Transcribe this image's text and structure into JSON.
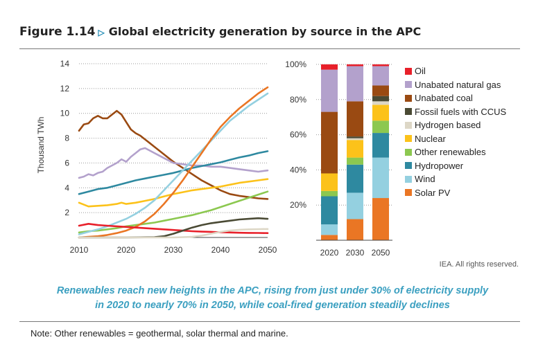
{
  "header": {
    "figure_label": "Figure 1.14",
    "title": "Global electricity generation by source in the APC"
  },
  "credit": "IEA. All rights reserved.",
  "caption_line1": "Renewables reach new heights in the APC, rising from just under 30% of electricity supply",
  "caption_line2": "in 2020 to nearly 70% in 2050, while coal-fired generation steadily declines",
  "note": "Note: Other renewables = geothermal, solar thermal and marine.",
  "colors": {
    "oil": "#e8202a",
    "unabated_gas": "#b3a1cc",
    "unabated_coal": "#9a4a12",
    "ccus": "#4a4a34",
    "hydrogen": "#ddd7c6",
    "nuclear": "#fcc21a",
    "other_renewables": "#8cc850",
    "hydropower": "#2e89a0",
    "wind": "#94d0e0",
    "solar_pv": "#ea7624"
  },
  "chart_data": [
    {
      "type": "line",
      "ylabel": "Thousand TWh",
      "xlabel": "",
      "xlim": [
        2010,
        2050
      ],
      "ylim": [
        0,
        14
      ],
      "x_ticks": [
        2010,
        2020,
        2030,
        2040,
        2050
      ],
      "y_ticks": [
        2,
        4,
        6,
        8,
        10,
        12,
        14
      ],
      "grid": "horizontal dotted",
      "series": [
        {
          "key": "coal",
          "color": "#9a4a12",
          "x": [
            2010,
            2011,
            2012,
            2013,
            2014,
            2015,
            2016,
            2017,
            2018,
            2019,
            2020,
            2021,
            2022,
            2023,
            2024,
            2025,
            2026,
            2027,
            2028,
            2029,
            2030,
            2032,
            2034,
            2036,
            2038,
            2040,
            2042,
            2044,
            2046,
            2048,
            2050
          ],
          "y": [
            8.6,
            9.1,
            9.2,
            9.6,
            9.8,
            9.6,
            9.6,
            9.9,
            10.2,
            9.9,
            9.3,
            8.7,
            8.4,
            8.2,
            7.9,
            7.6,
            7.3,
            7.0,
            6.7,
            6.4,
            6.1,
            5.6,
            5.1,
            4.6,
            4.2,
            3.8,
            3.5,
            3.35,
            3.25,
            3.15,
            3.1
          ]
        },
        {
          "key": "gas",
          "color": "#b3a1cc",
          "x": [
            2010,
            2011,
            2012,
            2013,
            2014,
            2015,
            2016,
            2017,
            2018,
            2019,
            2020,
            2021,
            2022,
            2023,
            2024,
            2025,
            2026,
            2027,
            2028,
            2029,
            2030,
            2032,
            2034,
            2036,
            2038,
            2040,
            2042,
            2044,
            2046,
            2048,
            2050
          ],
          "y": [
            4.8,
            4.9,
            5.1,
            5.0,
            5.2,
            5.3,
            5.6,
            5.8,
            6.0,
            6.3,
            6.1,
            6.5,
            6.8,
            7.1,
            7.2,
            7.0,
            6.8,
            6.6,
            6.4,
            6.2,
            6.0,
            5.9,
            5.8,
            5.8,
            5.7,
            5.7,
            5.6,
            5.5,
            5.4,
            5.3,
            5.4
          ]
        },
        {
          "key": "hydro",
          "color": "#2e89a0",
          "x": [
            2010,
            2012,
            2014,
            2016,
            2018,
            2020,
            2022,
            2024,
            2026,
            2028,
            2030,
            2032,
            2034,
            2036,
            2038,
            2040,
            2042,
            2044,
            2046,
            2048,
            2050
          ],
          "y": [
            3.5,
            3.7,
            3.9,
            4.0,
            4.2,
            4.4,
            4.6,
            4.75,
            4.9,
            5.05,
            5.2,
            5.4,
            5.6,
            5.75,
            5.9,
            6.05,
            6.25,
            6.45,
            6.6,
            6.8,
            6.95
          ]
        },
        {
          "key": "nuclear",
          "color": "#fcc21a",
          "x": [
            2010,
            2012,
            2014,
            2016,
            2018,
            2019,
            2020,
            2022,
            2024,
            2026,
            2028,
            2030,
            2032,
            2034,
            2036,
            2038,
            2040,
            2042,
            2044,
            2046,
            2048,
            2050
          ],
          "y": [
            2.8,
            2.5,
            2.55,
            2.6,
            2.7,
            2.8,
            2.7,
            2.8,
            2.95,
            3.1,
            3.3,
            3.5,
            3.65,
            3.8,
            3.9,
            4.0,
            4.1,
            4.25,
            4.4,
            4.5,
            4.6,
            4.7
          ]
        },
        {
          "key": "other_renewables",
          "color": "#8cc850",
          "x": [
            2010,
            2012,
            2014,
            2016,
            2018,
            2020,
            2022,
            2024,
            2026,
            2028,
            2030,
            2032,
            2034,
            2036,
            2038,
            2040,
            2042,
            2044,
            2046,
            2048,
            2050
          ],
          "y": [
            0.4,
            0.5,
            0.55,
            0.65,
            0.75,
            0.9,
            1.0,
            1.1,
            1.2,
            1.35,
            1.5,
            1.65,
            1.8,
            2.0,
            2.2,
            2.45,
            2.7,
            2.95,
            3.2,
            3.45,
            3.7
          ]
        },
        {
          "key": "wind",
          "color": "#94d0e0",
          "x": [
            2010,
            2012,
            2014,
            2016,
            2018,
            2020,
            2022,
            2024,
            2026,
            2028,
            2030,
            2032,
            2034,
            2036,
            2038,
            2040,
            2042,
            2044,
            2046,
            2048,
            2050
          ],
          "y": [
            0.25,
            0.45,
            0.65,
            0.9,
            1.2,
            1.5,
            1.9,
            2.4,
            3.0,
            3.8,
            4.6,
            5.4,
            6.2,
            7.0,
            7.8,
            8.6,
            9.4,
            10.0,
            10.6,
            11.1,
            11.6
          ]
        },
        {
          "key": "solar",
          "color": "#ea7624",
          "x": [
            2010,
            2012,
            2014,
            2016,
            2018,
            2020,
            2022,
            2024,
            2026,
            2028,
            2030,
            2032,
            2034,
            2036,
            2038,
            2040,
            2042,
            2044,
            2046,
            2048,
            2050
          ],
          "y": [
            0.0,
            0.05,
            0.1,
            0.2,
            0.35,
            0.55,
            0.85,
            1.3,
            1.9,
            2.7,
            3.6,
            4.6,
            5.7,
            6.8,
            7.9,
            8.9,
            9.7,
            10.4,
            11.0,
            11.6,
            12.1
          ]
        },
        {
          "key": "oil",
          "color": "#e8202a",
          "x": [
            2010,
            2012,
            2014,
            2016,
            2018,
            2020,
            2022,
            2024,
            2026,
            2028,
            2030,
            2032,
            2034,
            2036,
            2038,
            2040,
            2042,
            2044,
            2046,
            2048,
            2050
          ],
          "y": [
            0.95,
            1.1,
            1.0,
            0.95,
            0.9,
            0.85,
            0.8,
            0.75,
            0.7,
            0.65,
            0.6,
            0.55,
            0.5,
            0.47,
            0.45,
            0.42,
            0.4,
            0.38,
            0.37,
            0.36,
            0.35
          ]
        },
        {
          "key": "ccus",
          "color": "#4a4a34",
          "x": [
            2010,
            2020,
            2026,
            2028,
            2030,
            2032,
            2034,
            2036,
            2038,
            2040,
            2042,
            2044,
            2046,
            2048,
            2050
          ],
          "y": [
            0.0,
            0.0,
            0.02,
            0.1,
            0.3,
            0.55,
            0.8,
            1.0,
            1.15,
            1.25,
            1.35,
            1.45,
            1.5,
            1.55,
            1.5
          ]
        },
        {
          "key": "hydrogen",
          "color": "#ddd7c6",
          "x": [
            2010,
            2030,
            2034,
            2036,
            2038,
            2040,
            2042,
            2044,
            2046,
            2048,
            2050
          ],
          "y": [
            0.0,
            0.0,
            0.05,
            0.15,
            0.3,
            0.45,
            0.55,
            0.62,
            0.65,
            0.67,
            0.68
          ]
        }
      ]
    },
    {
      "type": "bar",
      "stacked": true,
      "categories": [
        "2020",
        "2030",
        "2050"
      ],
      "ylim": [
        0,
        100
      ],
      "y_ticks": [
        "20%",
        "40%",
        "60%",
        "80%",
        "100%"
      ],
      "legend_position": "right",
      "series": [
        {
          "name": "Solar PV",
          "color": "#ea7624",
          "values": [
            3,
            12,
            24
          ]
        },
        {
          "name": "Wind",
          "color": "#94d0e0",
          "values": [
            6,
            15,
            23
          ]
        },
        {
          "name": "Hydropower",
          "color": "#2e89a0",
          "values": [
            16,
            16,
            14
          ]
        },
        {
          "name": "Other renewables",
          "color": "#8cc850",
          "values": [
            3,
            4,
            7
          ]
        },
        {
          "name": "Nuclear",
          "color": "#fcc21a",
          "values": [
            10,
            10,
            9
          ]
        },
        {
          "name": "Hydrogen based",
          "color": "#ddd7c6",
          "values": [
            0,
            1,
            2
          ]
        },
        {
          "name": "Fossil fuels with CCUS",
          "color": "#4a4a34",
          "values": [
            0,
            1,
            3
          ]
        },
        {
          "name": "Unabated coal",
          "color": "#9a4a12",
          "values": [
            35,
            20,
            6
          ]
        },
        {
          "name": "Unabated natural gas",
          "color": "#b3a1cc",
          "values": [
            24,
            20,
            11
          ]
        },
        {
          "name": "Oil",
          "color": "#e8202a",
          "values": [
            3,
            1,
            1
          ]
        }
      ],
      "legend": [
        "Oil",
        "Unabated natural gas",
        "Unabated coal",
        "Fossil fuels with CCUS",
        "Hydrogen based",
        "Nuclear",
        "Other renewables",
        "Hydropower",
        "Wind",
        "Solar PV"
      ]
    }
  ]
}
